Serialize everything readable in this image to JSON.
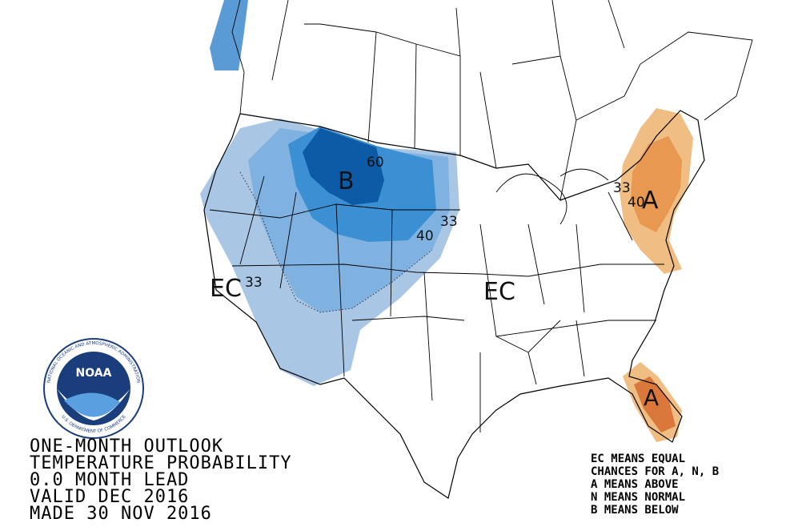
{
  "title_block": {
    "lines": [
      "ONE-MONTH OUTLOOK",
      "TEMPERATURE PROBABILITY",
      "0.0 MONTH LEAD",
      "VALID DEC 2016",
      "MADE 30 NOV 2016"
    ]
  },
  "legend_note": {
    "lines": [
      "EC MEANS EQUAL",
      "CHANCES FOR A, N, B",
      "A MEANS ABOVE",
      "N MEANS NORMAL",
      "B MEANS BELOW"
    ]
  },
  "logo": {
    "text": "NOAA",
    "ring_top": "NATIONAL OCEANIC AND ATMOSPHERIC ADMINISTRATION",
    "ring_bottom": "U.S. DEPARTMENT OF COMMERCE"
  },
  "map_labels": [
    {
      "text": "B"
    },
    {
      "text": "60"
    },
    {
      "text": "40"
    },
    {
      "text": "33"
    },
    {
      "text": "EC"
    },
    {
      "text": "33"
    },
    {
      "text": "EC"
    },
    {
      "text": "A"
    },
    {
      "text": "40"
    },
    {
      "text": "33"
    },
    {
      "text": "A"
    }
  ]
}
